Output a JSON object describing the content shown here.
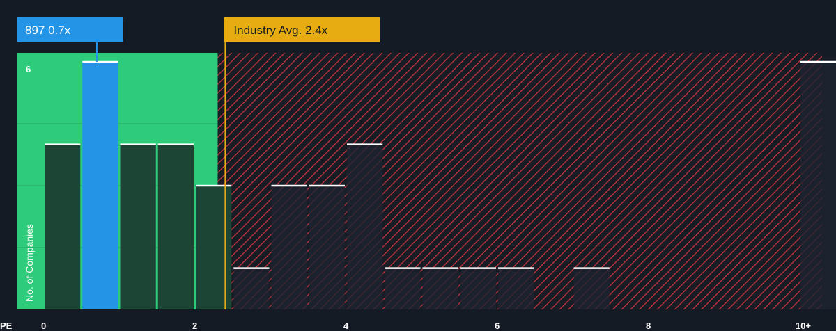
{
  "chart_data": {
    "type": "bar",
    "xlabel": "PE",
    "ylabel": "No. of Companies",
    "x_ticks": [
      "0",
      "2",
      "4",
      "6",
      "8",
      "10+"
    ],
    "x_tick_values": [
      0,
      2,
      4,
      6,
      8,
      10
    ],
    "y_tick_labels": [
      "6"
    ],
    "y_tick_values": [
      6
    ],
    "ylim": [
      0,
      6
    ],
    "xlim": [
      -0.35,
      10.3
    ],
    "bin_width": 0.5,
    "bins": [
      {
        "start": 0.0,
        "value": 4
      },
      {
        "start": 0.5,
        "value": 6,
        "highlight": true
      },
      {
        "start": 1.0,
        "value": 4
      },
      {
        "start": 1.5,
        "value": 4
      },
      {
        "start": 2.0,
        "value": 3
      },
      {
        "start": 2.5,
        "value": 1
      },
      {
        "start": 3.0,
        "value": 3
      },
      {
        "start": 3.5,
        "value": 3
      },
      {
        "start": 4.0,
        "value": 4
      },
      {
        "start": 4.5,
        "value": 1
      },
      {
        "start": 5.0,
        "value": 1
      },
      {
        "start": 5.5,
        "value": 1
      },
      {
        "start": 6.0,
        "value": 1
      },
      {
        "start": 6.5,
        "value": 0
      },
      {
        "start": 7.0,
        "value": 1
      },
      {
        "start": 7.5,
        "value": 0
      },
      {
        "start": 8.0,
        "value": 0
      },
      {
        "start": 8.5,
        "value": 0
      },
      {
        "start": 9.0,
        "value": 0
      },
      {
        "start": 9.5,
        "value": 0
      },
      {
        "start": 10.0,
        "value": 6
      }
    ],
    "fair_zone_end": 2.3,
    "company": {
      "label": "897 0.7x",
      "value": 0.7
    },
    "industry_avg": {
      "label": "Industry Avg. 2.4x",
      "value": 2.4
    }
  },
  "colors": {
    "background": "#151b24",
    "fair_zone": "#2ecc7a",
    "fair_bar": "#1c4535",
    "company_bar": "#2394e6",
    "expensive_bar": "#1d2330",
    "hatch_line": "#d23a45",
    "bar_top": "#ffffff",
    "industry": "#e7ac12",
    "grid": "#2a3340"
  }
}
